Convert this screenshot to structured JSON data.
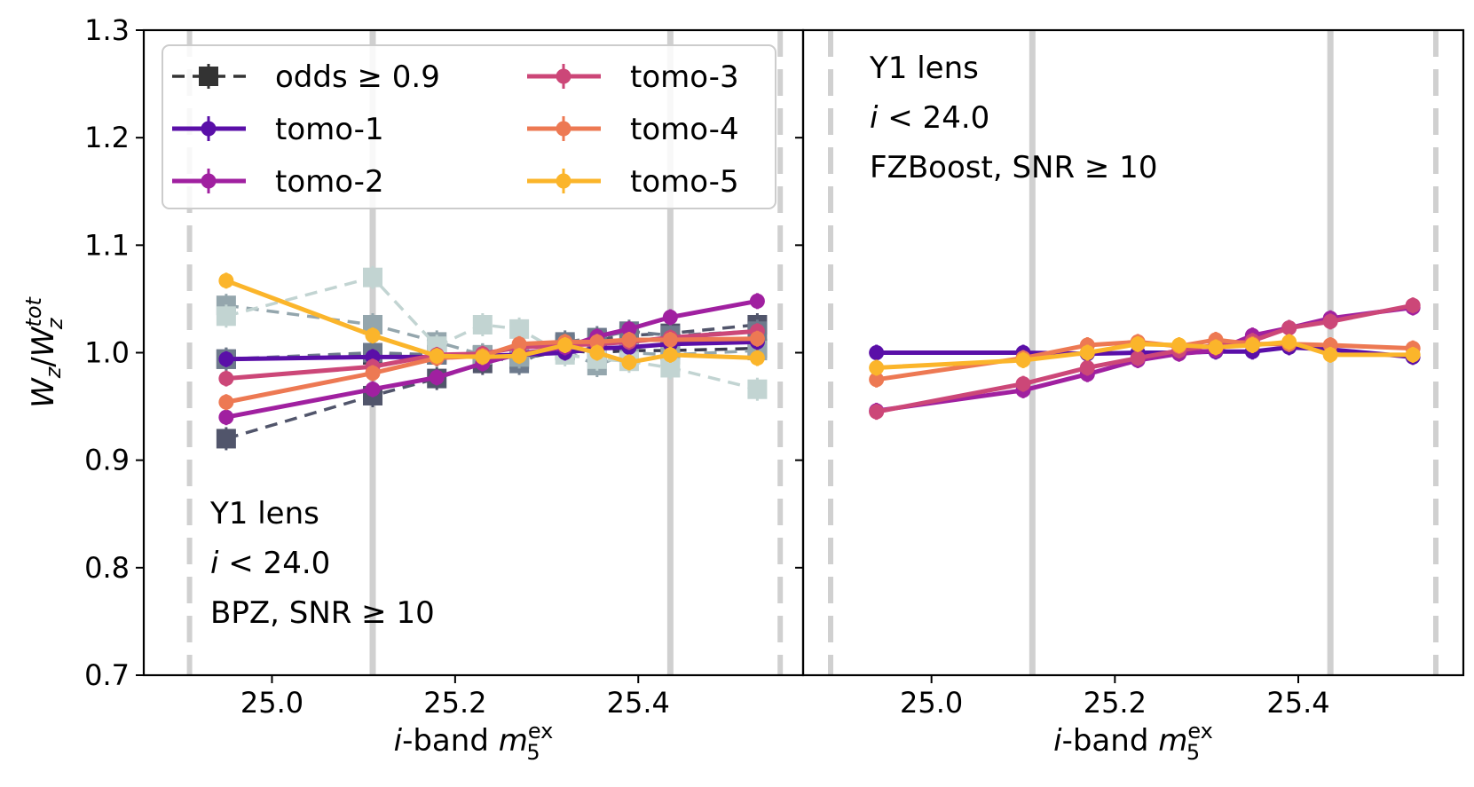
{
  "chart_data": [
    {
      "type": "line",
      "panel": "left",
      "ylabel": "W_z/W_z^tot",
      "xlabel": "i-band m_5^ex",
      "xlim": [
        24.86,
        25.58
      ],
      "ylim": [
        0.7,
        1.3
      ],
      "xticks": [
        "25.0",
        "25.2",
        "25.4"
      ],
      "yticks": [
        "0.7",
        "0.8",
        "0.9",
        "1.0",
        "1.1",
        "1.2",
        "1.3"
      ],
      "vlines_solid": [
        25.11,
        25.435
      ],
      "vlines_dashed": [
        24.91,
        25.555
      ],
      "annotation": [
        "Y1 lens",
        "i < 24.0",
        "BPZ, SNR ≥ 10"
      ],
      "legend": {
        "placement": "top-left",
        "entries": [
          {
            "label": "odds ≥ 0.9",
            "color": "#333333",
            "marker": "square",
            "dashed": true
          },
          {
            "label": "tomo-1",
            "color": "#5a0fa8"
          },
          {
            "label": "tomo-2",
            "color": "#a020a0"
          },
          {
            "label": "tomo-3",
            "color": "#cc4778"
          },
          {
            "label": "tomo-4",
            "color": "#ed7953"
          },
          {
            "label": "tomo-5",
            "color": "#fbb52b"
          }
        ]
      },
      "x": [
        24.95,
        25.11,
        25.18,
        25.23,
        25.27,
        25.32,
        25.355,
        25.39,
        25.435,
        25.53
      ],
      "series": [
        {
          "name": "odds ≥ 0.9 (tomo-1)",
          "style": "odds",
          "color": "#3a3a4f",
          "values": [
            0.994,
            0.998,
            0.998,
            0.997,
            0.994,
            1.002,
            1.0,
            1.002,
            1.002,
            1.004
          ]
        },
        {
          "name": "odds ≥ 0.9 (tomo-2)",
          "style": "odds",
          "color": "#51556b",
          "values": [
            0.92,
            0.96,
            0.976,
            0.99,
            0.998,
            1.008,
            1.012,
            1.016,
            1.018,
            1.026
          ]
        },
        {
          "name": "odds ≥ 0.9 (tomo-3)",
          "style": "odds",
          "color": "#6d7a8c",
          "values": [
            0.994,
            1.0,
            0.998,
            0.998,
            0.99,
            1.01,
            1.014,
            1.02,
            1.016,
            1.02
          ]
        },
        {
          "name": "odds ≥ 0.9 (tomo-4)",
          "style": "odds",
          "color": "#94a6ad",
          "values": [
            1.044,
            1.026,
            1.01,
            0.998,
            0.996,
            1.002,
            0.988,
            1.0,
            0.998,
            1.002
          ]
        },
        {
          "name": "odds ≥ 0.9 (tomo-5)",
          "style": "odds",
          "color": "#c2d4d2",
          "values": [
            1.034,
            1.07,
            1.006,
            1.026,
            1.022,
            0.998,
            0.994,
            0.992,
            0.986,
            0.966
          ]
        },
        {
          "name": "tomo-1",
          "style": "tomo",
          "color": "#5a0fa8",
          "values": [
            0.994,
            0.996,
            0.996,
            0.997,
            0.998,
            1.0,
            1.004,
            1.005,
            1.008,
            1.01
          ]
        },
        {
          "name": "tomo-2",
          "style": "tomo",
          "color": "#a020a0",
          "values": [
            0.94,
            0.966,
            0.977,
            0.99,
            0.999,
            1.005,
            1.015,
            1.022,
            1.033,
            1.048
          ]
        },
        {
          "name": "tomo-3",
          "style": "tomo",
          "color": "#cc4778",
          "values": [
            0.976,
            0.987,
            0.998,
            0.999,
            1.005,
            1.007,
            1.008,
            1.01,
            1.014,
            1.02
          ]
        },
        {
          "name": "tomo-4",
          "style": "tomo",
          "color": "#ed7953",
          "values": [
            0.954,
            0.981,
            0.995,
            0.997,
            1.008,
            1.01,
            1.01,
            1.012,
            1.012,
            1.013
          ]
        },
        {
          "name": "tomo-5",
          "style": "tomo",
          "color": "#fbb52b",
          "values": [
            1.067,
            1.016,
            0.997,
            0.996,
            0.997,
            1.007,
            1.0,
            0.991,
            0.998,
            0.995
          ]
        }
      ]
    },
    {
      "type": "line",
      "panel": "right",
      "xlabel": "i-band m_5^ex",
      "xlim": [
        24.86,
        25.58
      ],
      "ylim": [
        0.7,
        1.3
      ],
      "xticks": [
        "25.0",
        "25.2",
        "25.4"
      ],
      "vlines_solid": [
        25.11,
        25.435
      ],
      "vlines_dashed": [
        24.89,
        25.55
      ],
      "annotation": [
        "Y1 lens",
        "i < 24.0",
        "FZBoost, SNR ≥ 10"
      ],
      "x": [
        24.94,
        25.1,
        25.17,
        25.225,
        25.27,
        25.31,
        25.35,
        25.39,
        25.435,
        25.525
      ],
      "series": [
        {
          "name": "tomo-1",
          "style": "tomo",
          "color": "#5a0fa8",
          "values": [
            1.0,
            1.0,
            0.999,
            1.0,
            1.0,
            1.001,
            1.001,
            1.005,
            1.003,
            0.996
          ]
        },
        {
          "name": "tomo-2",
          "style": "tomo",
          "color": "#a020a0",
          "values": [
            0.946,
            0.965,
            0.98,
            0.993,
            0.999,
            1.002,
            1.016,
            1.023,
            1.032,
            1.042
          ]
        },
        {
          "name": "tomo-3",
          "style": "tomo",
          "color": "#cc4778",
          "values": [
            0.945,
            0.971,
            0.986,
            0.995,
            1.002,
            1.007,
            1.011,
            1.023,
            1.029,
            1.044
          ]
        },
        {
          "name": "tomo-4",
          "style": "tomo",
          "color": "#ed7953",
          "values": [
            0.975,
            0.995,
            1.007,
            1.01,
            1.006,
            1.012,
            1.008,
            1.008,
            1.007,
            1.004
          ]
        },
        {
          "name": "tomo-5",
          "style": "tomo",
          "color": "#fbb52b",
          "values": [
            0.986,
            0.993,
            1.0,
            1.008,
            1.007,
            1.005,
            1.007,
            1.01,
            0.998,
            0.998
          ]
        }
      ]
    }
  ]
}
